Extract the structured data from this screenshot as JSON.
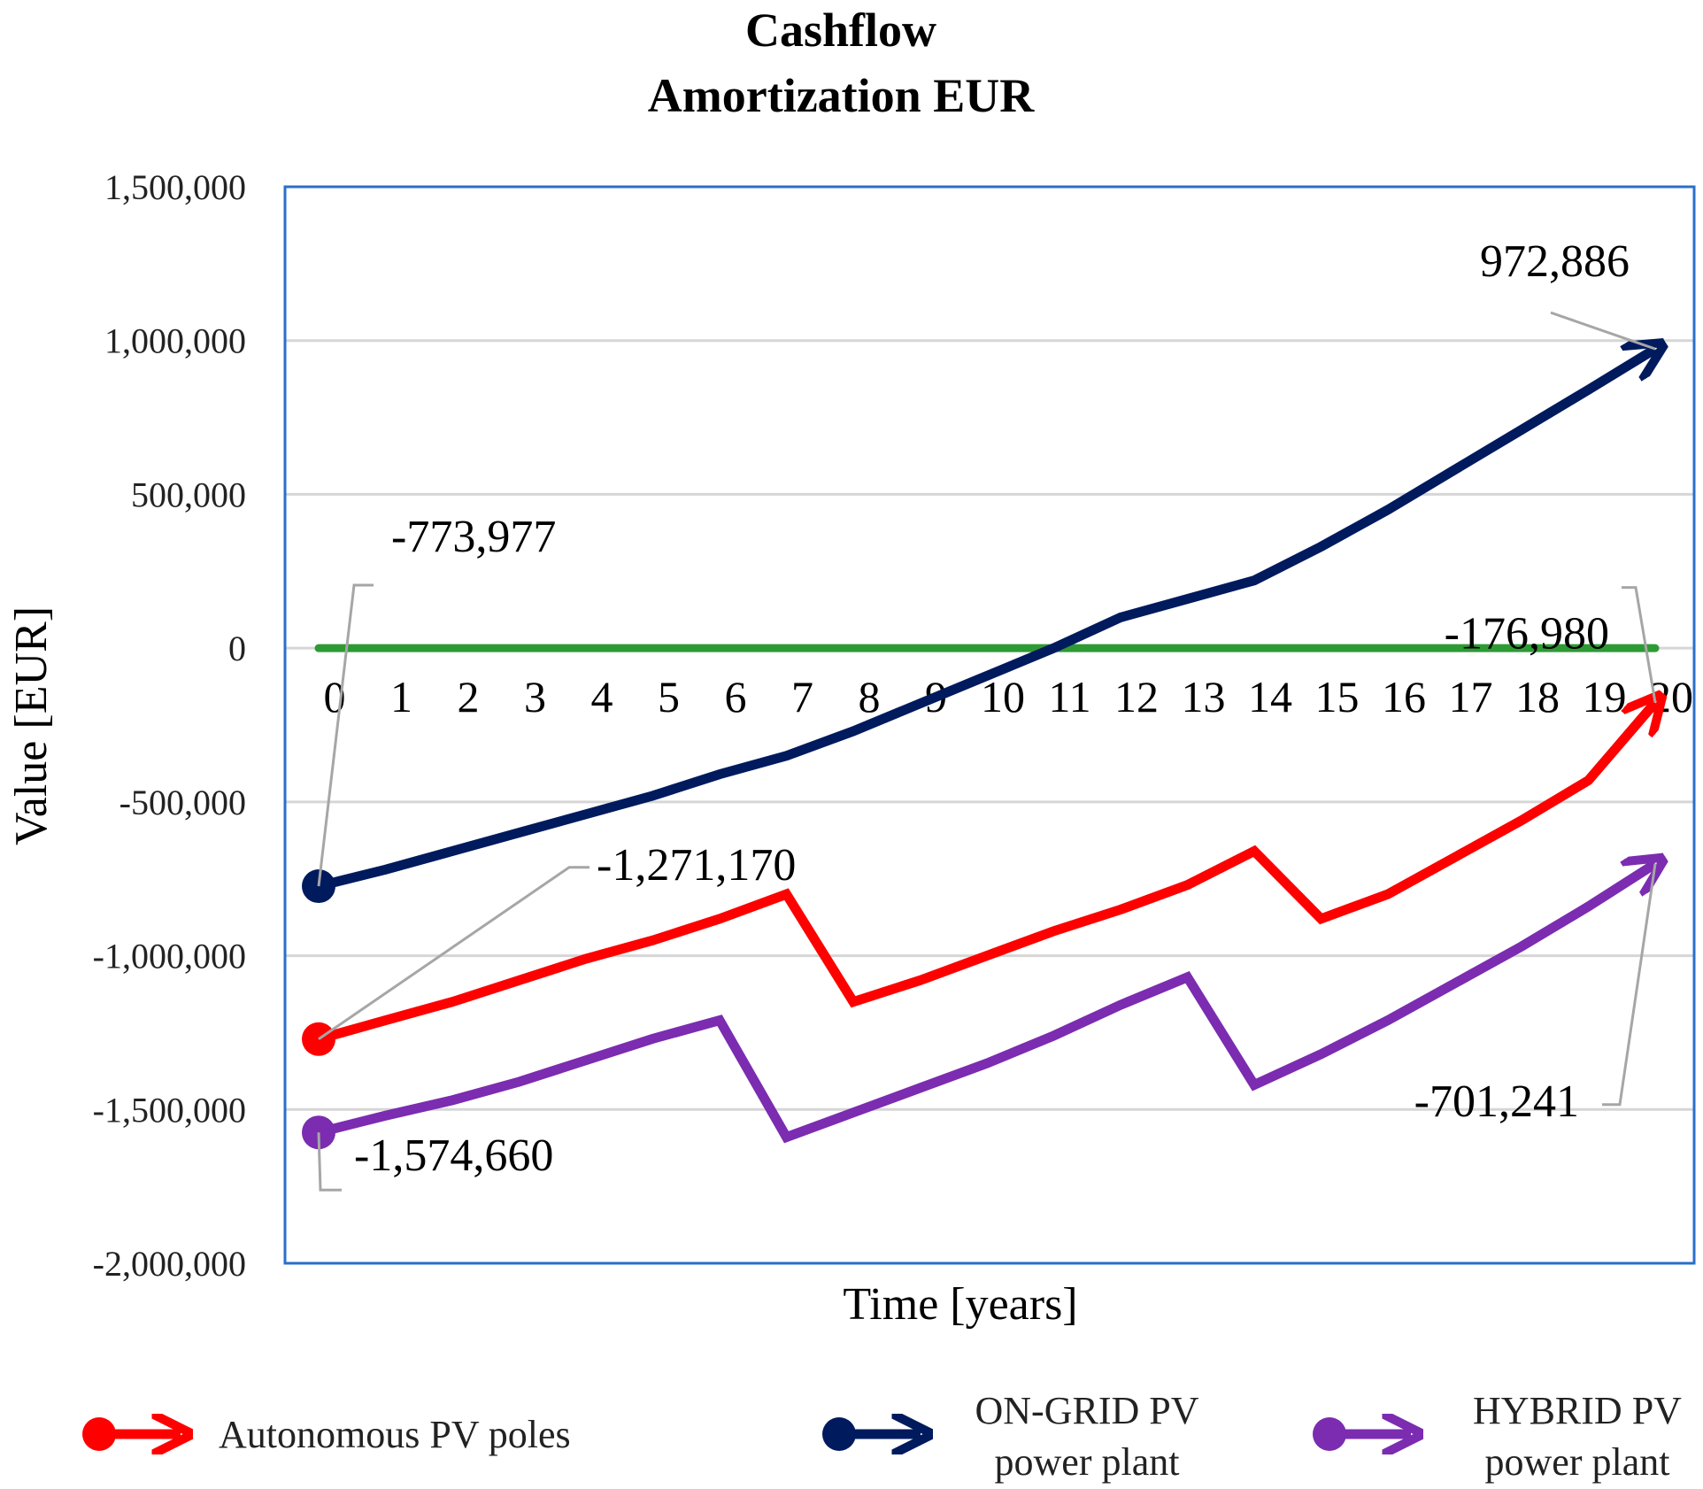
{
  "chart_data": {
    "type": "line",
    "title": "Cashflow",
    "subtitle": "Amortization EUR",
    "xlabel": "Time [years]",
    "ylabel": "Value [EUR]",
    "categories": [
      "0",
      "1",
      "2",
      "3",
      "4",
      "5",
      "6",
      "7",
      "8",
      "9",
      "10",
      "11",
      "12",
      "13",
      "14",
      "15",
      "16",
      "17",
      "18",
      "19",
      "20"
    ],
    "ylim": [
      -2000000,
      1500000
    ],
    "y_ticks": [
      1500000,
      1000000,
      500000,
      0,
      -500000,
      -1000000,
      -1500000,
      -2000000
    ],
    "y_tick_labels": [
      "1,500,000",
      "1,000,000",
      "500,000",
      "0",
      "-500,000",
      "-1,000,000",
      "-1,500,000",
      "-2,000,000"
    ],
    "grid": true,
    "legend_position": "bottom",
    "series": [
      {
        "name": "Autonomous PV poles",
        "color": "#ff0000",
        "values": [
          -1271170,
          -1210000,
          -1150000,
          -1080000,
          -1010000,
          -950000,
          -880000,
          -800000,
          -1150000,
          -1080000,
          -1000000,
          -920000,
          -850000,
          -770000,
          -660000,
          -880000,
          -800000,
          -680000,
          -560000,
          -430000,
          -176980
        ]
      },
      {
        "name": "ON-GRID PV power plant",
        "color": "#001a5e",
        "values": [
          -773977,
          -720000,
          -660000,
          -600000,
          -540000,
          -480000,
          -410000,
          -350000,
          -270000,
          -180000,
          -90000,
          0,
          100000,
          160000,
          220000,
          330000,
          450000,
          580000,
          710000,
          840000,
          972886
        ]
      },
      {
        "name": "HYBRID PV power plant",
        "color": "#7b2cb0",
        "values": [
          -1574660,
          -1520000,
          -1470000,
          -1410000,
          -1340000,
          -1270000,
          -1210000,
          -1590000,
          -1510000,
          -1430000,
          -1350000,
          -1260000,
          -1160000,
          -1070000,
          -1420000,
          -1320000,
          -1210000,
          -1090000,
          -970000,
          -840000,
          -701241
        ]
      },
      {
        "name": "",
        "color": "#2e9a34",
        "values": [
          0,
          0,
          0,
          0,
          0,
          0,
          0,
          0,
          0,
          0,
          0,
          0,
          0,
          0,
          0,
          0,
          0,
          0,
          0,
          0,
          0
        ]
      }
    ],
    "data_labels": [
      {
        "series": 1,
        "index": 0,
        "text": "-773,977"
      },
      {
        "series": 1,
        "index": 20,
        "text": "972,886"
      },
      {
        "series": 0,
        "index": 0,
        "text": "-1,271,170"
      },
      {
        "series": 0,
        "index": 20,
        "text": "-176,980"
      },
      {
        "series": 2,
        "index": 0,
        "text": "-1,574,660"
      },
      {
        "series": 2,
        "index": 20,
        "text": "-701,241"
      }
    ],
    "legend": [
      {
        "series": 0,
        "lines": [
          "Autonomous PV poles"
        ]
      },
      {
        "series": 1,
        "lines": [
          "ON-GRID PV",
          "power plant"
        ]
      },
      {
        "series": 2,
        "lines": [
          "HYBRID PV",
          "power plant"
        ]
      }
    ]
  }
}
